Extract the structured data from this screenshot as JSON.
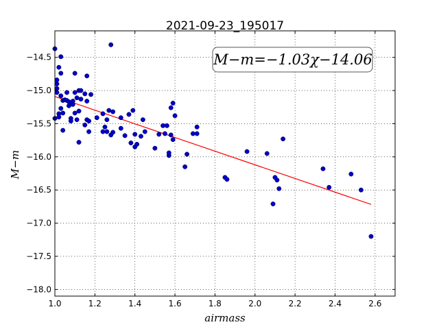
{
  "chart_data": {
    "type": "scatter",
    "title": "2021-09-23_195017",
    "xlabel": "airmass",
    "ylabel": "M−m",
    "xlim": [
      1.0,
      2.7
    ],
    "ylim": [
      -18.1,
      -14.1
    ],
    "x_ticks": [
      1.0,
      1.2,
      1.4,
      1.6,
      1.8,
      2.0,
      2.2,
      2.4,
      2.6
    ],
    "x_tick_labels": [
      "1.0",
      "1.2",
      "1.4",
      "1.6",
      "1.8",
      "2.0",
      "2.2",
      "2.4",
      "2.6"
    ],
    "y_ticks": [
      -18.0,
      -17.5,
      -17.0,
      -16.5,
      -16.0,
      -15.5,
      -15.0,
      -14.5
    ],
    "y_tick_labels": [
      "−18.0",
      "−17.5",
      "−17.0",
      "−16.5",
      "−16.0",
      "−15.5",
      "−15.0",
      "−14.5"
    ],
    "grid": true,
    "annotation": "M−m=−1.03χ−14.06",
    "fit": {
      "slope": -1.03,
      "intercept": -14.06,
      "x_range": [
        1.0,
        2.58
      ]
    },
    "series": [
      {
        "color": "#0000cc",
        "points": [
          [
            1.0,
            -14.37
          ],
          [
            1.0,
            -15.42
          ],
          [
            1.01,
            -14.84
          ],
          [
            1.01,
            -14.9
          ],
          [
            1.01,
            -14.97
          ],
          [
            1.01,
            -15.03
          ],
          [
            1.02,
            -14.65
          ],
          [
            1.02,
            -15.35
          ],
          [
            1.02,
            -15.4
          ],
          [
            1.03,
            -14.49
          ],
          [
            1.03,
            -14.74
          ],
          [
            1.03,
            -15.08
          ],
          [
            1.03,
            -15.27
          ],
          [
            1.04,
            -15.15
          ],
          [
            1.04,
            -15.34
          ],
          [
            1.04,
            -15.6
          ],
          [
            1.05,
            -15.14
          ],
          [
            1.06,
            -15.03
          ],
          [
            1.06,
            -15.15
          ],
          [
            1.07,
            -15.17
          ],
          [
            1.07,
            -15.23
          ],
          [
            1.08,
            -15.2
          ],
          [
            1.08,
            -15.42
          ],
          [
            1.08,
            -15.46
          ],
          [
            1.09,
            -15.16
          ],
          [
            1.09,
            -15.21
          ],
          [
            1.1,
            -14.74
          ],
          [
            1.1,
            -15.03
          ],
          [
            1.1,
            -15.34
          ],
          [
            1.11,
            -15.11
          ],
          [
            1.11,
            -15.44
          ],
          [
            1.12,
            -15.0
          ],
          [
            1.12,
            -15.31
          ],
          [
            1.12,
            -15.78
          ],
          [
            1.13,
            -15.0
          ],
          [
            1.13,
            -15.13
          ],
          [
            1.15,
            -15.05
          ],
          [
            1.15,
            -15.52
          ],
          [
            1.16,
            -14.78
          ],
          [
            1.16,
            -15.16
          ],
          [
            1.16,
            -15.44
          ],
          [
            1.17,
            -15.46
          ],
          [
            1.17,
            -15.62
          ],
          [
            1.18,
            -15.06
          ],
          [
            1.21,
            -15.41
          ],
          [
            1.24,
            -15.35
          ],
          [
            1.24,
            -15.62
          ],
          [
            1.25,
            -15.55
          ],
          [
            1.26,
            -15.44
          ],
          [
            1.26,
            -15.62
          ],
          [
            1.27,
            -15.3
          ],
          [
            1.28,
            -14.31
          ],
          [
            1.28,
            -15.67
          ],
          [
            1.29,
            -15.32
          ],
          [
            1.29,
            -15.63
          ],
          [
            1.33,
            -15.41
          ],
          [
            1.33,
            -15.57
          ],
          [
            1.35,
            -15.68
          ],
          [
            1.37,
            -15.36
          ],
          [
            1.38,
            -15.79
          ],
          [
            1.39,
            -15.3
          ],
          [
            1.4,
            -15.66
          ],
          [
            1.4,
            -15.85
          ],
          [
            1.41,
            -15.81
          ],
          [
            1.43,
            -15.69
          ],
          [
            1.44,
            -15.44
          ],
          [
            1.45,
            -15.62
          ],
          [
            1.5,
            -15.87
          ],
          [
            1.52,
            -15.66
          ],
          [
            1.54,
            -15.53
          ],
          [
            1.55,
            -15.65
          ],
          [
            1.56,
            -15.53
          ],
          [
            1.57,
            -15.98
          ],
          [
            1.57,
            -15.94
          ],
          [
            1.58,
            -15.67
          ],
          [
            1.58,
            -15.26
          ],
          [
            1.59,
            -15.19
          ],
          [
            1.59,
            -15.74
          ],
          [
            1.6,
            -15.38
          ],
          [
            1.65,
            -16.15
          ],
          [
            1.66,
            -15.96
          ],
          [
            1.69,
            -15.65
          ],
          [
            1.71,
            -15.55
          ],
          [
            1.71,
            -15.65
          ],
          [
            1.85,
            -16.31
          ],
          [
            1.86,
            -16.34
          ],
          [
            1.96,
            -15.92
          ],
          [
            2.06,
            -15.95
          ],
          [
            2.09,
            -16.71
          ],
          [
            2.1,
            -16.31
          ],
          [
            2.11,
            -16.35
          ],
          [
            2.12,
            -16.48
          ],
          [
            2.14,
            -15.73
          ],
          [
            2.34,
            -16.18
          ],
          [
            2.37,
            -16.46
          ],
          [
            2.48,
            -16.26
          ],
          [
            2.53,
            -16.5
          ],
          [
            2.58,
            -17.2
          ]
        ]
      }
    ]
  }
}
